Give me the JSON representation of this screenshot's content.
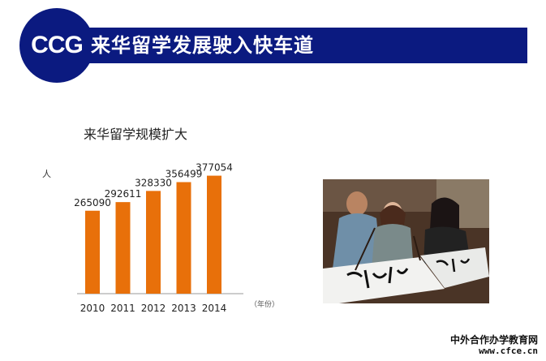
{
  "header": {
    "logo_text": "CCG",
    "title": "来华留学发展驶入快车道",
    "color": "#0b1a80"
  },
  "chart_data": {
    "type": "bar",
    "title": "来华留学规模扩大",
    "ylabel": "人",
    "xlabel_unit": "（年份）",
    "categories": [
      "2010",
      "2011",
      "2012",
      "2013",
      "2014"
    ],
    "values": [
      265090,
      292611,
      328330,
      356499,
      377054
    ],
    "ylim": [
      0,
      420000
    ],
    "bar_color": "#e8700a",
    "grid": false
  },
  "photo": {
    "icon": "students-calligraphy-photo"
  },
  "watermark": {
    "line1": "中外合作办学教育网",
    "line2": "www.cfce.cn"
  }
}
